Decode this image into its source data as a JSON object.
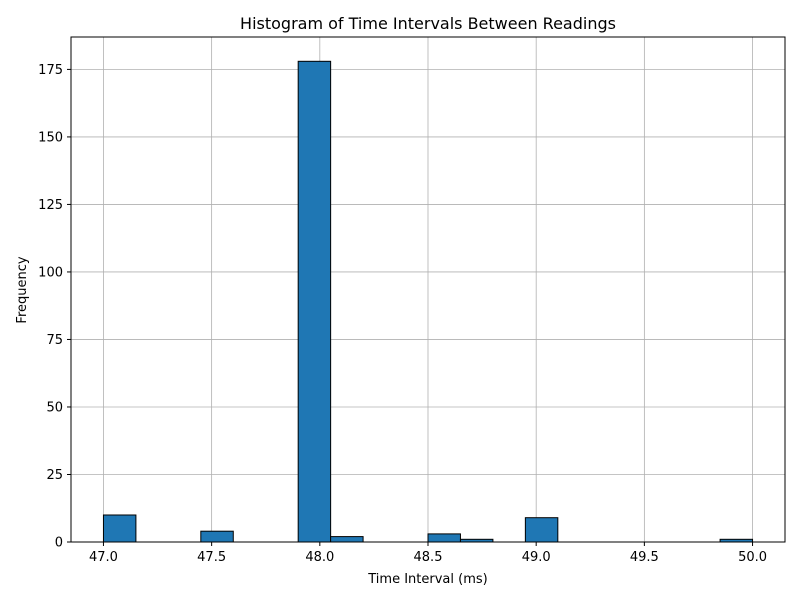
{
  "chart_data": {
    "type": "bar",
    "title": "Histogram of Time Intervals Between Readings",
    "xlabel": "Time Interval (ms)",
    "ylabel": "Frequency",
    "xlim": [
      46.85,
      50.15
    ],
    "ylim": [
      0,
      187
    ],
    "xticks": [
      "47.0",
      "47.5",
      "48.0",
      "48.5",
      "49.0",
      "49.5",
      "50.0"
    ],
    "xtick_values": [
      47.0,
      47.5,
      48.0,
      48.5,
      49.0,
      49.5,
      50.0
    ],
    "yticks": [
      "0",
      "25",
      "50",
      "75",
      "100",
      "125",
      "150",
      "175"
    ],
    "ytick_values": [
      0,
      25,
      50,
      75,
      100,
      125,
      150,
      175
    ],
    "bin_edges": [
      47.0,
      47.15,
      47.3,
      47.45,
      47.6,
      47.75,
      47.9,
      48.05,
      48.2,
      48.35,
      48.5,
      48.65,
      48.8,
      48.95,
      49.1,
      49.25,
      49.4,
      49.55,
      49.7,
      49.85,
      50.0
    ],
    "values": [
      10,
      0,
      0,
      4,
      0,
      0,
      178,
      2,
      0,
      0,
      3,
      1,
      0,
      9,
      0,
      0,
      0,
      0,
      0,
      1
    ],
    "grid": true,
    "colors": {
      "bar": "#1f77b4",
      "edge": "#000000",
      "grid": "#b0b0b0"
    }
  }
}
